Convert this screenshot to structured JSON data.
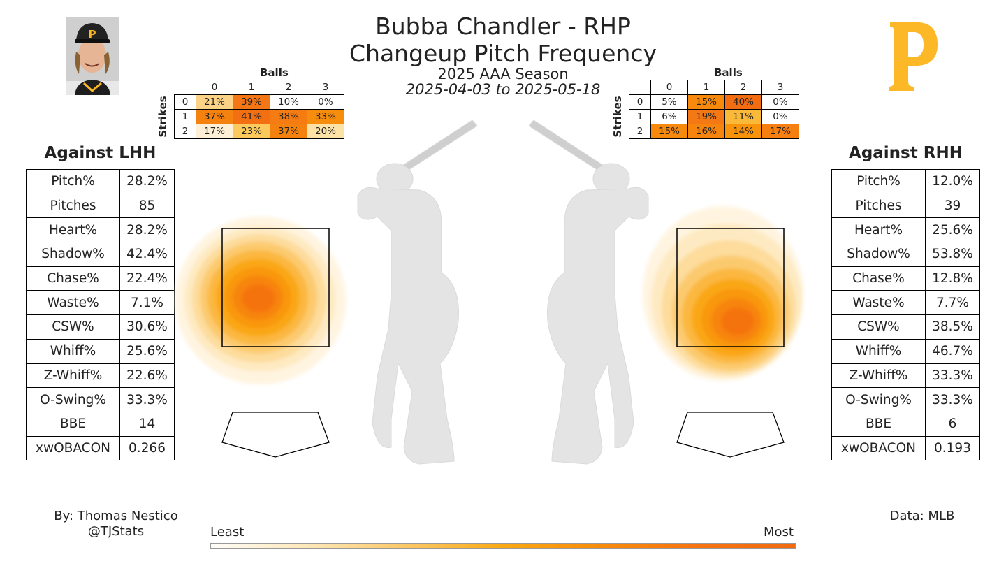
{
  "header": {
    "title": "Bubba Chandler - RHP",
    "subtitle": "Changeup Pitch Frequency",
    "season": "2025 AAA Season",
    "dates": "2025-04-03 to 2025-05-18"
  },
  "logo": {
    "letter": "P",
    "color": "#FDB827"
  },
  "count_tables": {
    "balls_label": "Balls",
    "strikes_label": "Strikes",
    "col_headers": [
      "0",
      "1",
      "2",
      "3"
    ],
    "row_headers": [
      "0",
      "1",
      "2"
    ],
    "lhh": [
      [
        {
          "v": "21%",
          "c": "#fcd386"
        },
        {
          "v": "39%",
          "c": "#f47614"
        },
        {
          "v": "10%",
          "c": "#ffffff"
        },
        {
          "v": "0%",
          "c": "#ffffff"
        }
      ],
      [
        {
          "v": "37%",
          "c": "#f5810f"
        },
        {
          "v": "41%",
          "c": "#f27012"
        },
        {
          "v": "38%",
          "c": "#f47c12"
        },
        {
          "v": "33%",
          "c": "#f78d0c"
        }
      ],
      [
        {
          "v": "17%",
          "c": "#fdf0d6"
        },
        {
          "v": "23%",
          "c": "#fcc95c"
        },
        {
          "v": "37%",
          "c": "#f5820f"
        },
        {
          "v": "20%",
          "c": "#fde2a8"
        }
      ]
    ],
    "rhh": [
      [
        {
          "v": "5%",
          "c": "#ffffff"
        },
        {
          "v": "15%",
          "c": "#f7890c"
        },
        {
          "v": "40%",
          "c": "#f26d12"
        },
        {
          "v": "0%",
          "c": "#ffffff"
        }
      ],
      [
        {
          "v": "6%",
          "c": "#ffffff"
        },
        {
          "v": "19%",
          "c": "#f47814"
        },
        {
          "v": "11%",
          "c": "#fbb939"
        },
        {
          "v": "0%",
          "c": "#ffffff"
        }
      ],
      [
        {
          "v": "15%",
          "c": "#f7890c"
        },
        {
          "v": "16%",
          "c": "#f7850d"
        },
        {
          "v": "14%",
          "c": "#f8930a"
        },
        {
          "v": "17%",
          "c": "#f67f10"
        }
      ]
    ]
  },
  "lhh": {
    "title": "Against LHH",
    "stats": [
      {
        "label": "Pitch%",
        "value": "28.2%"
      },
      {
        "label": "Pitches",
        "value": "85"
      },
      {
        "label": "Heart%",
        "value": "28.2%"
      },
      {
        "label": "Shadow%",
        "value": "42.4%"
      },
      {
        "label": "Chase%",
        "value": "22.4%"
      },
      {
        "label": "Waste%",
        "value": "7.1%"
      },
      {
        "label": "CSW%",
        "value": "30.6%"
      },
      {
        "label": "Whiff%",
        "value": "25.6%"
      },
      {
        "label": "Z-Whiff%",
        "value": "22.6%"
      },
      {
        "label": "O-Swing%",
        "value": "33.3%"
      },
      {
        "label": "BBE",
        "value": "14"
      },
      {
        "label": "xwOBACON",
        "value": "0.266"
      }
    ]
  },
  "rhh": {
    "title": "Against RHH",
    "stats": [
      {
        "label": "Pitch%",
        "value": "12.0%"
      },
      {
        "label": "Pitches",
        "value": "39"
      },
      {
        "label": "Heart%",
        "value": "25.6%"
      },
      {
        "label": "Shadow%",
        "value": "53.8%"
      },
      {
        "label": "Chase%",
        "value": "12.8%"
      },
      {
        "label": "Waste%",
        "value": "7.7%"
      },
      {
        "label": "CSW%",
        "value": "38.5%"
      },
      {
        "label": "Whiff%",
        "value": "46.7%"
      },
      {
        "label": "Z-Whiff%",
        "value": "33.3%"
      },
      {
        "label": "O-Swing%",
        "value": "33.3%"
      },
      {
        "label": "BBE",
        "value": "6"
      },
      {
        "label": "xwOBACON",
        "value": "0.193"
      }
    ]
  },
  "footer": {
    "by": "By: Thomas Nestico",
    "handle": "@TJStats",
    "data_source": "Data: MLB",
    "colorbar_least": "Least",
    "colorbar_most": "Most"
  },
  "chart_data": {
    "type": "heatmap",
    "description_source": "count frequency tables",
    "lhh": {
      "balls": [
        0,
        1,
        2,
        3
      ],
      "strikes": [
        0,
        1,
        2
      ],
      "values_pct": [
        [
          21,
          39,
          10,
          0
        ],
        [
          37,
          41,
          38,
          33
        ],
        [
          17,
          23,
          37,
          20
        ]
      ]
    },
    "rhh": {
      "balls": [
        0,
        1,
        2,
        3
      ],
      "strikes": [
        0,
        1,
        2
      ],
      "values_pct": [
        [
          5,
          15,
          40,
          0
        ],
        [
          6,
          19,
          11,
          0
        ],
        [
          15,
          16,
          14,
          17
        ]
      ]
    },
    "colorscale": [
      "#fffdf8",
      "#fde7b8",
      "#fbc865",
      "#f9a913",
      "#f98b0b",
      "#f77310",
      "#f26a0f"
    ]
  }
}
